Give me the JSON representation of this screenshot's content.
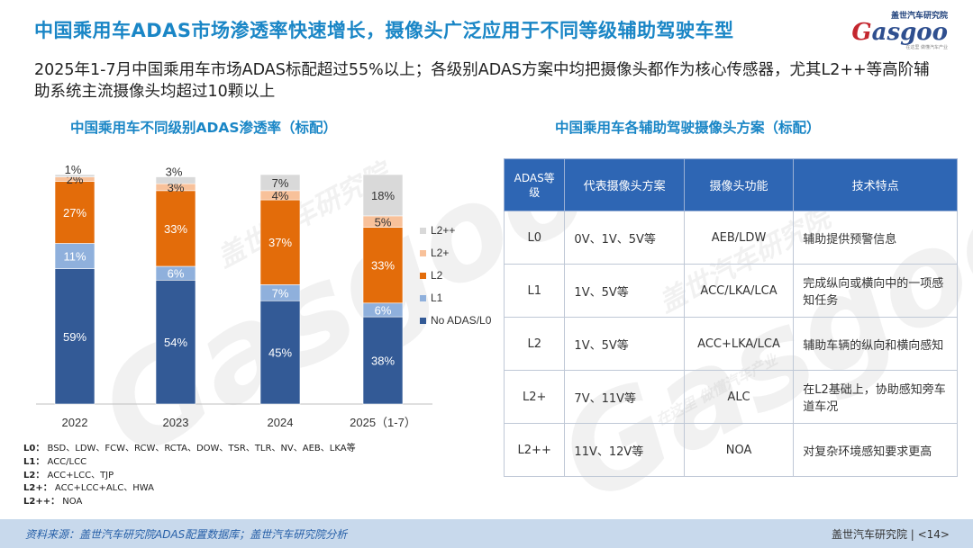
{
  "title": "中国乘用车ADAS市场渗透率快速增长，摄像头广泛应用于不同等级辅助驾驶车型",
  "logo": {
    "top": "盖世汽车研究院",
    "word_g": "G",
    "word_rest": "asgoo",
    "tag": "在这里 做懂汽车产业"
  },
  "subtitle": "2025年1-7月中国乘用车市场ADAS标配超过55%以上；各级别ADAS方案中均把摄像头都作为核心传感器，尤其L2++等高阶辅助系统主流摄像头均超过10颗以上",
  "left_title": "中国乘用车不同级别ADAS渗透率（标配）",
  "right_title": "中国乘用车各辅助驾驶摄像头方案（标配）",
  "chart_data": {
    "type": "bar",
    "stacked": true,
    "categories": [
      "2022",
      "2023",
      "2024",
      "2025（1-7）"
    ],
    "series": [
      {
        "name": "No ADAS/L0",
        "color": "#335a96",
        "values": [
          59,
          54,
          45,
          38
        ]
      },
      {
        "name": "L1",
        "color": "#8fb0dc",
        "values": [
          11,
          6,
          7,
          6
        ]
      },
      {
        "name": "L2",
        "color": "#e36c0a",
        "values": [
          27,
          33,
          37,
          33
        ]
      },
      {
        "name": "L2+",
        "color": "#f8c19a",
        "values": [
          2,
          3,
          4,
          5
        ]
      },
      {
        "name": "L2++",
        "color": "#d9d9d9",
        "values": [
          1,
          3,
          7,
          18
        ]
      }
    ],
    "data_labels": [
      [
        "59%",
        "11%",
        "27%",
        "2%",
        "1%"
      ],
      [
        "54%",
        "6%",
        "33%",
        "3%",
        "3%"
      ],
      [
        "45%",
        "7%",
        "37%",
        "4%",
        "7%"
      ],
      [
        "38%",
        "6%",
        "33%",
        "5%",
        "18%"
      ]
    ],
    "legend_position": "right"
  },
  "notes": [
    {
      "key": "L0：",
      "value": "BSD、LDW、FCW、RCW、RCTA、DOW、TSR、TLR、NV、AEB、LKA等"
    },
    {
      "key": "L1：",
      "value": "ACC/LCC"
    },
    {
      "key": "L2：",
      "value": "ACC+LCC、TJP"
    },
    {
      "key": "L2+：",
      "value": "ACC+LCC+ALC、HWA"
    },
    {
      "key": "L2++：",
      "value": "NOA"
    }
  ],
  "table": {
    "headers": [
      "ADAS等级",
      "代表摄像头方案",
      "摄像头功能",
      "技术特点"
    ],
    "rows": [
      [
        "L0",
        "0V、1V、5V等",
        "AEB/LDW",
        "辅助提供预警信息"
      ],
      [
        "L1",
        "1V、5V等",
        "ACC/LKA/LCA",
        "完成纵向或横向中的一项感知任务"
      ],
      [
        "L2",
        "1V、5V等",
        "ACC+LKA/LCA",
        "辅助车辆的纵向和横向感知"
      ],
      [
        "L2+",
        "7V、11V等",
        "ALC",
        "在L2基础上，协助感知旁车道车况"
      ],
      [
        "L2++",
        "11V、12V等",
        "NOA",
        "对复杂环境感知要求更高"
      ]
    ]
  },
  "footer": {
    "source": "资料来源：盖世汽车研究院ADAS配置数据库；盖世汽车研究院分析",
    "page": "盖世汽车研究院 | <14>"
  },
  "watermark": {
    "word": "Gasgoo",
    "cn": "盖世汽车研究院",
    "slogan": "在这里 做懂汽车产业"
  }
}
